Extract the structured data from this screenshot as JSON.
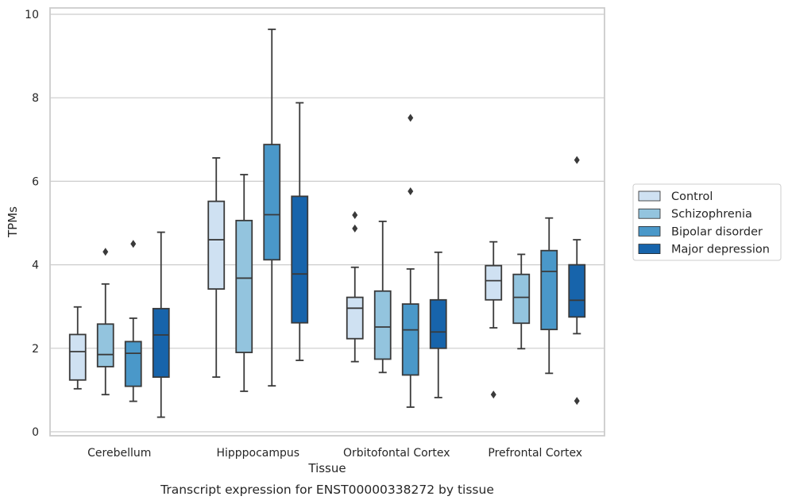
{
  "chart_data": {
    "type": "box",
    "xlabel": "Tissue",
    "ylabel": "TPMs",
    "caption": "Transcript expression for ENST00000338272 by tissue",
    "ylim": [
      -0.1,
      10.1
    ],
    "yticks": [
      0,
      2,
      4,
      6,
      8,
      10
    ],
    "grid": "horizontal",
    "legend_position": "right",
    "categories": [
      "Cerebellum",
      "Hipppocampus",
      "Orbitofontal Cortex",
      "Prefrontal Cortex"
    ],
    "series": [
      {
        "name": "Control",
        "color": "#cfe1f2",
        "boxes": [
          {
            "min": 1.03,
            "q1": 1.24,
            "median": 1.92,
            "q3": 2.33,
            "max": 2.99,
            "outliers": []
          },
          {
            "min": 1.31,
            "q1": 3.42,
            "median": 4.6,
            "q3": 5.52,
            "max": 6.56,
            "outliers": []
          },
          {
            "min": 1.68,
            "q1": 2.23,
            "median": 2.96,
            "q3": 3.22,
            "max": 3.94,
            "outliers": [
              4.87,
              5.19
            ]
          },
          {
            "min": 2.49,
            "q1": 3.16,
            "median": 3.62,
            "q3": 3.98,
            "max": 4.55,
            "outliers": [
              0.89
            ]
          }
        ]
      },
      {
        "name": "Schizophrenia",
        "color": "#93c4de",
        "boxes": [
          {
            "min": 0.89,
            "q1": 1.56,
            "median": 1.85,
            "q3": 2.58,
            "max": 3.54,
            "outliers": [
              4.31
            ]
          },
          {
            "min": 0.97,
            "q1": 1.9,
            "median": 3.68,
            "q3": 5.06,
            "max": 6.16,
            "outliers": []
          },
          {
            "min": 1.42,
            "q1": 1.74,
            "median": 2.51,
            "q3": 3.37,
            "max": 5.04,
            "outliers": []
          },
          {
            "min": 1.99,
            "q1": 2.6,
            "median": 3.22,
            "q3": 3.77,
            "max": 4.25,
            "outliers": []
          }
        ]
      },
      {
        "name": "Bipolar disorder",
        "color": "#4a98c9",
        "boxes": [
          {
            "min": 0.73,
            "q1": 1.09,
            "median": 1.88,
            "q3": 2.16,
            "max": 2.72,
            "outliers": [
              4.5
            ]
          },
          {
            "min": 1.1,
            "q1": 4.12,
            "median": 5.2,
            "q3": 6.88,
            "max": 9.64,
            "outliers": []
          },
          {
            "min": 0.59,
            "q1": 1.36,
            "median": 2.44,
            "q3": 3.06,
            "max": 3.9,
            "outliers": [
              5.76,
              7.52
            ]
          },
          {
            "min": 1.4,
            "q1": 2.45,
            "median": 3.84,
            "q3": 4.34,
            "max": 5.12,
            "outliers": []
          }
        ]
      },
      {
        "name": "Major depression",
        "color": "#1764ab",
        "boxes": [
          {
            "min": 0.35,
            "q1": 1.31,
            "median": 2.32,
            "q3": 2.95,
            "max": 4.78,
            "outliers": []
          },
          {
            "min": 1.71,
            "q1": 2.61,
            "median": 3.78,
            "q3": 5.64,
            "max": 7.88,
            "outliers": []
          },
          {
            "min": 0.82,
            "q1": 2.0,
            "median": 2.39,
            "q3": 3.16,
            "max": 4.3,
            "outliers": []
          },
          {
            "min": 2.35,
            "q1": 2.75,
            "median": 3.15,
            "q3": 4.0,
            "max": 4.6,
            "outliers": [
              0.74,
              6.51
            ]
          }
        ]
      }
    ]
  }
}
